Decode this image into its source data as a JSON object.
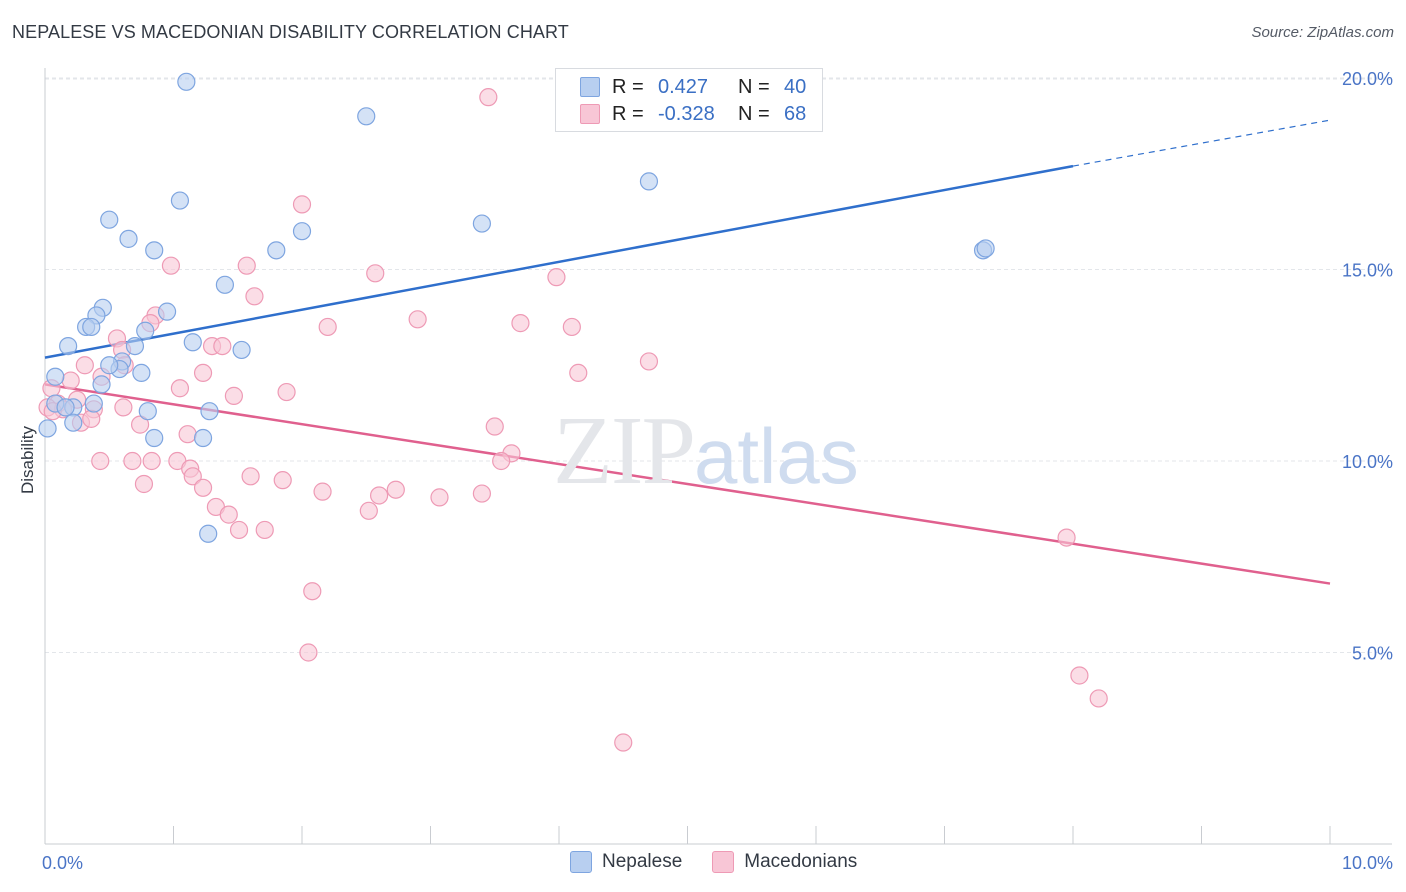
{
  "header": {
    "title": "NEPALESE VS MACEDONIAN DISABILITY CORRELATION CHART",
    "source": "Source: ZipAtlas.com"
  },
  "watermark": {
    "zip": "ZIP",
    "atlas": "atlas"
  },
  "legend": {
    "rows": [
      {
        "r_label": "R =",
        "r_value": "0.427",
        "n_label": "N =",
        "n_value": "40"
      },
      {
        "r_label": "R =",
        "r_value": "-0.328",
        "n_label": "N =",
        "n_value": "68"
      }
    ]
  },
  "bottom_legend": {
    "nepalese": "Nepalese",
    "macedonians": "Macedonians"
  },
  "colors": {
    "nepalese_fill": "#b8cff0",
    "nepalese_stroke": "#7ea5e0",
    "nepalese_line": "#2f6fcc",
    "macedonian_fill": "#f8c6d6",
    "macedonian_stroke": "#ee9ab5",
    "macedonian_line": "#e0608e",
    "grid": "#e3e6ea",
    "tick_label": "#4a74c6"
  },
  "chart_data": {
    "type": "scatter",
    "title": "NEPALESE VS MACEDONIAN DISABILITY CORRELATION CHART",
    "xlabel": "",
    "ylabel": "Disability",
    "xlim": [
      0,
      10
    ],
    "ylim": [
      0,
      20.5
    ],
    "x_tick_labels": [
      "0.0%",
      "10.0%"
    ],
    "y_ticks": [
      5,
      10,
      15,
      20
    ],
    "y_tick_labels": [
      "5.0%",
      "10.0%",
      "15.0%",
      "20.0%"
    ],
    "grid": true,
    "legend_position": "top-center",
    "series": [
      {
        "name": "Nepalese",
        "R": 0.427,
        "N": 40,
        "trend": {
          "x": [
            0,
            8
          ],
          "y": [
            12.7,
            17.7
          ],
          "dashed_to": [
            10,
            18.9
          ]
        },
        "points": [
          [
            1.1,
            19.9
          ],
          [
            2.5,
            19.0
          ],
          [
            4.7,
            17.3
          ],
          [
            1.05,
            16.8
          ],
          [
            3.4,
            16.2
          ],
          [
            0.5,
            16.3
          ],
          [
            0.65,
            15.8
          ],
          [
            2.0,
            16.0
          ],
          [
            0.85,
            15.5
          ],
          [
            1.8,
            15.5
          ],
          [
            7.3,
            15.5
          ],
          [
            7.32,
            15.55
          ],
          [
            1.4,
            14.6
          ],
          [
            0.45,
            14.0
          ],
          [
            0.95,
            13.9
          ],
          [
            0.4,
            13.8
          ],
          [
            0.32,
            13.5
          ],
          [
            0.36,
            13.5
          ],
          [
            0.78,
            13.4
          ],
          [
            0.7,
            13.0
          ],
          [
            0.18,
            13.0
          ],
          [
            1.15,
            13.1
          ],
          [
            1.53,
            12.9
          ],
          [
            0.6,
            12.6
          ],
          [
            0.58,
            12.4
          ],
          [
            0.75,
            12.3
          ],
          [
            0.08,
            12.2
          ],
          [
            0.44,
            12.0
          ],
          [
            0.08,
            11.5
          ],
          [
            0.38,
            11.5
          ],
          [
            0.22,
            11.4
          ],
          [
            0.8,
            11.3
          ],
          [
            1.28,
            11.3
          ],
          [
            0.22,
            11.0
          ],
          [
            0.85,
            10.6
          ],
          [
            1.23,
            10.6
          ],
          [
            0.02,
            10.85
          ],
          [
            1.27,
            8.1
          ],
          [
            0.16,
            11.4
          ],
          [
            0.5,
            12.5
          ]
        ]
      },
      {
        "name": "Macedonians",
        "R": -0.328,
        "N": 68,
        "trend": {
          "x": [
            0,
            10
          ],
          "y": [
            12.0,
            6.8
          ]
        },
        "points": [
          [
            3.45,
            19.5
          ],
          [
            2.0,
            16.7
          ],
          [
            0.98,
            15.1
          ],
          [
            1.57,
            15.1
          ],
          [
            2.57,
            14.9
          ],
          [
            3.98,
            14.8
          ],
          [
            1.63,
            14.3
          ],
          [
            0.86,
            13.8
          ],
          [
            2.9,
            13.7
          ],
          [
            3.7,
            13.6
          ],
          [
            2.2,
            13.5
          ],
          [
            4.1,
            13.5
          ],
          [
            0.82,
            13.6
          ],
          [
            0.56,
            13.2
          ],
          [
            1.3,
            13.0
          ],
          [
            1.38,
            13.0
          ],
          [
            0.6,
            12.9
          ],
          [
            4.7,
            12.6
          ],
          [
            0.62,
            12.5
          ],
          [
            0.31,
            12.5
          ],
          [
            1.23,
            12.3
          ],
          [
            4.15,
            12.3
          ],
          [
            0.2,
            12.1
          ],
          [
            0.44,
            12.2
          ],
          [
            0.05,
            11.9
          ],
          [
            1.05,
            11.9
          ],
          [
            1.88,
            11.8
          ],
          [
            1.47,
            11.7
          ],
          [
            0.1,
            11.5
          ],
          [
            0.02,
            11.4
          ],
          [
            0.14,
            11.35
          ],
          [
            0.06,
            11.3
          ],
          [
            0.38,
            11.35
          ],
          [
            0.61,
            11.4
          ],
          [
            0.28,
            11.0
          ],
          [
            0.36,
            11.1
          ],
          [
            0.74,
            10.95
          ],
          [
            3.5,
            10.9
          ],
          [
            1.11,
            10.7
          ],
          [
            3.63,
            10.2
          ],
          [
            3.55,
            10.0
          ],
          [
            0.43,
            10.0
          ],
          [
            0.68,
            10.0
          ],
          [
            0.83,
            10.0
          ],
          [
            1.03,
            10.0
          ],
          [
            1.13,
            9.8
          ],
          [
            1.15,
            9.6
          ],
          [
            1.6,
            9.6
          ],
          [
            1.85,
            9.5
          ],
          [
            0.77,
            9.4
          ],
          [
            1.23,
            9.3
          ],
          [
            2.16,
            9.2
          ],
          [
            2.73,
            9.25
          ],
          [
            2.6,
            9.1
          ],
          [
            3.4,
            9.15
          ],
          [
            3.07,
            9.05
          ],
          [
            1.33,
            8.8
          ],
          [
            1.43,
            8.6
          ],
          [
            2.52,
            8.7
          ],
          [
            1.51,
            8.2
          ],
          [
            1.71,
            8.2
          ],
          [
            7.95,
            8.0
          ],
          [
            2.08,
            6.6
          ],
          [
            2.05,
            5.0
          ],
          [
            8.05,
            4.4
          ],
          [
            8.2,
            3.8
          ],
          [
            4.5,
            2.65
          ],
          [
            0.25,
            11.6
          ]
        ]
      }
    ]
  }
}
